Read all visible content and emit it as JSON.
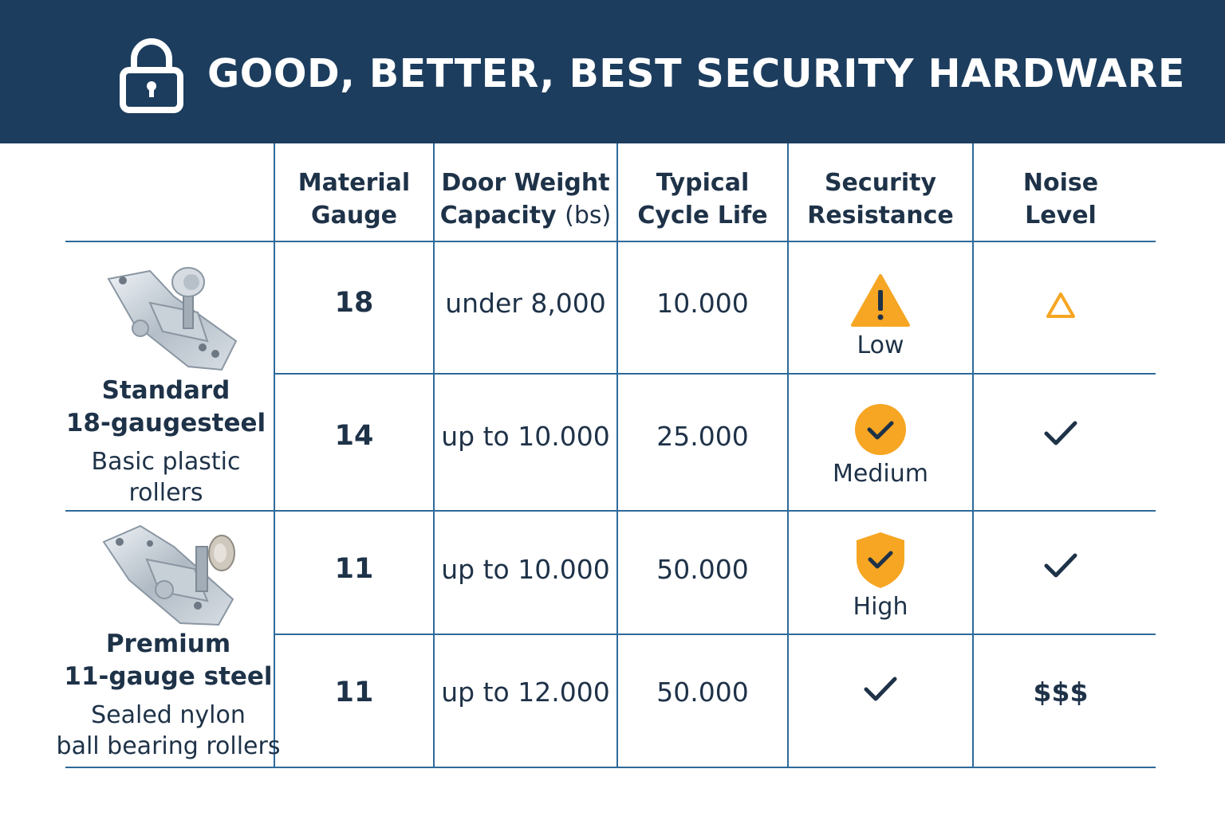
{
  "header": {
    "title": "GOOD, BETTER, BEST SECURITY HARDWARE",
    "icon": "lock-icon"
  },
  "columns": {
    "material": [
      "Material",
      "Gauge"
    ],
    "weight_line1": "Door Weight",
    "weight_line2": "Capacity",
    "weight_unit": "(bs)",
    "cycle": [
      "Typical",
      "Cycle Life"
    ],
    "security": [
      "Security",
      "Resistance"
    ],
    "noise": [
      "Noise",
      "Level"
    ]
  },
  "tiers": [
    {
      "name_line1": "Standard",
      "name_line2": "18-gaugesteel",
      "desc_line1": "Basic plastic",
      "desc_line2": "rollers"
    },
    {
      "name_line1": "Premium",
      "name_line2": "11-gauge steel",
      "desc_line1": "Sealed nylon",
      "desc_line2": "ball bearing rollers"
    }
  ],
  "rows": [
    {
      "gauge": "18",
      "weight": "under 8,000",
      "cycle": "10.000",
      "security": "Low",
      "security_icon": "warning-triangle-icon",
      "noise": "",
      "noise_icon": "triangle-outline-icon"
    },
    {
      "gauge": "14",
      "weight": "up to 10.000",
      "cycle": "25.000",
      "security": "Medium",
      "security_icon": "check-circle-icon",
      "noise": "",
      "noise_icon": "check-icon"
    },
    {
      "gauge": "11",
      "weight": "up to 10.000",
      "cycle": "50.000",
      "security": "High",
      "security_icon": "check-shield-icon",
      "noise": "",
      "noise_icon": "check-icon"
    },
    {
      "gauge": "11",
      "weight": "up to 12.000",
      "cycle": "50.000",
      "security": "",
      "security_icon": "check-icon",
      "noise": "$$$",
      "noise_icon": ""
    }
  ],
  "colors": {
    "header_bg": "#1c3d5e",
    "grid": "#2e6a99",
    "text": "#1e3248",
    "accent": "#f6a623"
  }
}
